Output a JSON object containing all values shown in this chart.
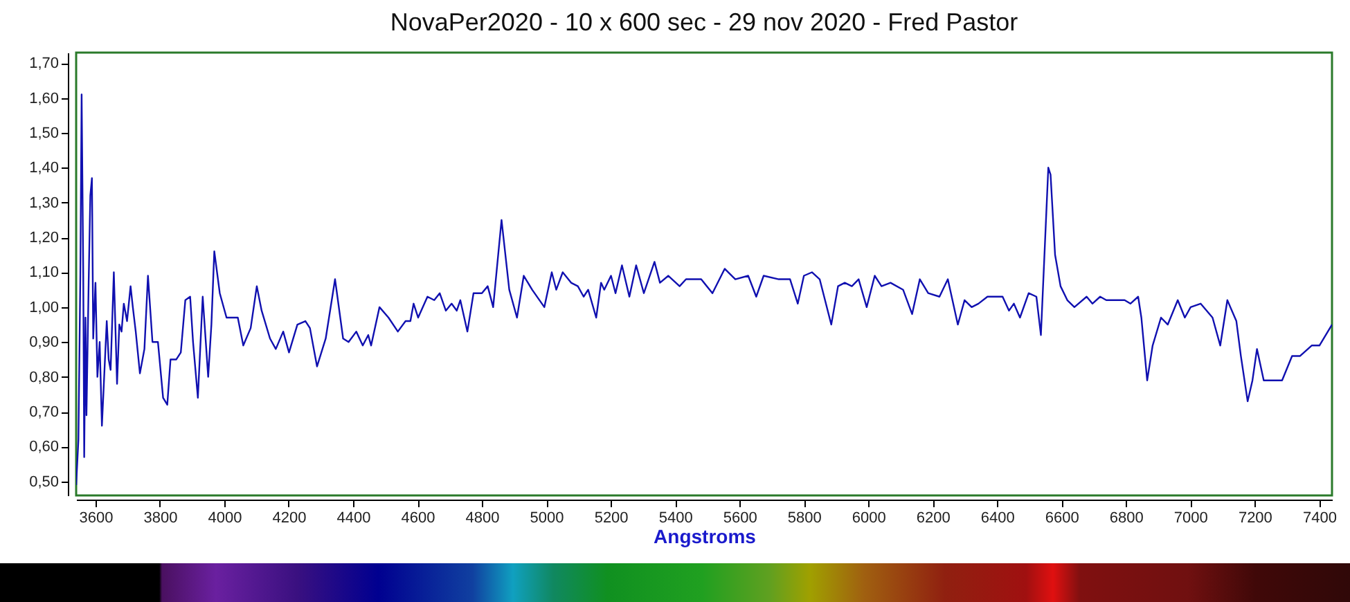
{
  "chart_data": {
    "type": "line",
    "title": "NovaPer2020 - 10 x 600 sec - 29 nov 2020 - Fred Pastor",
    "xlabel": "Angstroms",
    "x": [
      3540,
      3547,
      3553,
      3557,
      3562,
      3565,
      3569,
      3572,
      3579,
      3584,
      3589,
      3593,
      3600,
      3606,
      3613,
      3620,
      3626,
      3635,
      3641,
      3647,
      3657,
      3667,
      3674,
      3681,
      3688,
      3698,
      3709,
      3716,
      3725,
      3738,
      3752,
      3763,
      3777,
      3794,
      3810,
      3823,
      3833,
      3851,
      3865,
      3879,
      3894,
      3903,
      3918,
      3933,
      3950,
      3960,
      3969,
      3986,
      4007,
      4042,
      4059,
      4082,
      4101,
      4116,
      4142,
      4160,
      4183,
      4201,
      4227,
      4252,
      4266,
      4288,
      4315,
      4344,
      4369,
      4386,
      4410,
      4430,
      4447,
      4456,
      4482,
      4510,
      4539,
      4563,
      4578,
      4588,
      4602,
      4631,
      4652,
      4669,
      4688,
      4706,
      4722,
      4733,
      4755,
      4774,
      4800,
      4818,
      4835,
      4861,
      4885,
      4909,
      4930,
      4956,
      4994,
      5017,
      5031,
      5051,
      5077,
      5098,
      5116,
      5130,
      5155,
      5170,
      5180,
      5201,
      5215,
      5235,
      5258,
      5279,
      5303,
      5336,
      5353,
      5379,
      5414,
      5434,
      5481,
      5516,
      5554,
      5587,
      5627,
      5652,
      5675,
      5722,
      5757,
      5781,
      5800,
      5825,
      5849,
      5885,
      5906,
      5927,
      5949,
      5970,
      5995,
      6020,
      6041,
      6069,
      6108,
      6136,
      6160,
      6186,
      6221,
      6247,
      6278,
      6299,
      6321,
      6342,
      6370,
      6417,
      6437,
      6452,
      6471,
      6498,
      6522,
      6536,
      6559,
      6566,
      6580,
      6597,
      6618,
      6640,
      6678,
      6696,
      6720,
      6739,
      6796,
      6814,
      6838,
      6848,
      6866,
      6883,
      6909,
      6930,
      6961,
      6983,
      7001,
      7032,
      7069,
      7093,
      7115,
      7143,
      7157,
      7178,
      7193,
      7207,
      7228,
      7256,
      7285,
      7316,
      7341,
      7377,
      7401,
      7440
    ],
    "values": [
      0.49,
      0.62,
      1.09,
      1.61,
      1.1,
      0.57,
      0.97,
      0.69,
      1.08,
      1.32,
      1.37,
      0.91,
      1.07,
      0.8,
      0.9,
      0.66,
      0.78,
      0.96,
      0.85,
      0.82,
      1.1,
      0.78,
      0.95,
      0.93,
      1.01,
      0.96,
      1.06,
      1.0,
      0.93,
      0.81,
      0.88,
      1.09,
      0.9,
      0.9,
      0.74,
      0.72,
      0.85,
      0.85,
      0.87,
      1.02,
      1.03,
      0.9,
      0.74,
      1.03,
      0.8,
      0.95,
      1.16,
      1.04,
      0.97,
      0.97,
      0.89,
      0.94,
      1.06,
      0.99,
      0.91,
      0.88,
      0.93,
      0.87,
      0.95,
      0.96,
      0.94,
      0.83,
      0.91,
      1.08,
      0.91,
      0.9,
      0.93,
      0.89,
      0.92,
      0.89,
      1.0,
      0.97,
      0.93,
      0.96,
      0.96,
      1.01,
      0.97,
      1.03,
      1.02,
      1.04,
      0.99,
      1.01,
      0.99,
      1.02,
      0.93,
      1.04,
      1.04,
      1.06,
      1.0,
      1.25,
      1.05,
      0.97,
      1.09,
      1.05,
      1.0,
      1.1,
      1.05,
      1.1,
      1.07,
      1.06,
      1.03,
      1.05,
      0.97,
      1.07,
      1.05,
      1.09,
      1.04,
      1.12,
      1.03,
      1.12,
      1.04,
      1.13,
      1.07,
      1.09,
      1.06,
      1.08,
      1.08,
      1.04,
      1.11,
      1.08,
      1.09,
      1.03,
      1.09,
      1.08,
      1.08,
      1.01,
      1.09,
      1.1,
      1.08,
      0.95,
      1.06,
      1.07,
      1.06,
      1.08,
      1.0,
      1.09,
      1.06,
      1.07,
      1.05,
      0.98,
      1.08,
      1.04,
      1.03,
      1.08,
      0.95,
      1.02,
      1.0,
      1.01,
      1.03,
      1.03,
      0.99,
      1.01,
      0.97,
      1.04,
      1.03,
      0.92,
      1.4,
      1.38,
      1.15,
      1.06,
      1.02,
      1.0,
      1.03,
      1.01,
      1.03,
      1.02,
      1.02,
      1.01,
      1.03,
      0.97,
      0.79,
      0.89,
      0.97,
      0.95,
      1.02,
      0.97,
      1.0,
      1.01,
      0.97,
      0.89,
      1.02,
      0.96,
      0.86,
      0.73,
      0.79,
      0.88,
      0.79,
      0.79,
      0.79,
      0.86,
      0.86,
      0.89,
      0.89,
      0.95
    ],
    "color": "#1010b0",
    "xlim": [
      3540,
      7440
    ],
    "xticks": [
      3600,
      3800,
      4000,
      4200,
      4400,
      4600,
      4800,
      5000,
      5200,
      5400,
      5600,
      5800,
      6000,
      6200,
      6400,
      6600,
      6800,
      7000,
      7200,
      7400
    ],
    "ylim": [
      0.46,
      1.73
    ],
    "yticks": [
      {
        "value": 0.5,
        "label": "0,50"
      },
      {
        "value": 0.6,
        "label": "0,60"
      },
      {
        "value": 0.7,
        "label": "0,70"
      },
      {
        "value": 0.8,
        "label": "0,80"
      },
      {
        "value": 0.9,
        "label": "0,90"
      },
      {
        "value": 1.0,
        "label": "1,00"
      },
      {
        "value": 1.1,
        "label": "1,10"
      },
      {
        "value": 1.2,
        "label": "1,20"
      },
      {
        "value": 1.3,
        "label": "1,30"
      },
      {
        "value": 1.4,
        "label": "1,40"
      },
      {
        "value": 1.5,
        "label": "1,50"
      },
      {
        "value": 1.6,
        "label": "1,60"
      },
      {
        "value": 1.7,
        "label": "1,70"
      }
    ]
  }
}
